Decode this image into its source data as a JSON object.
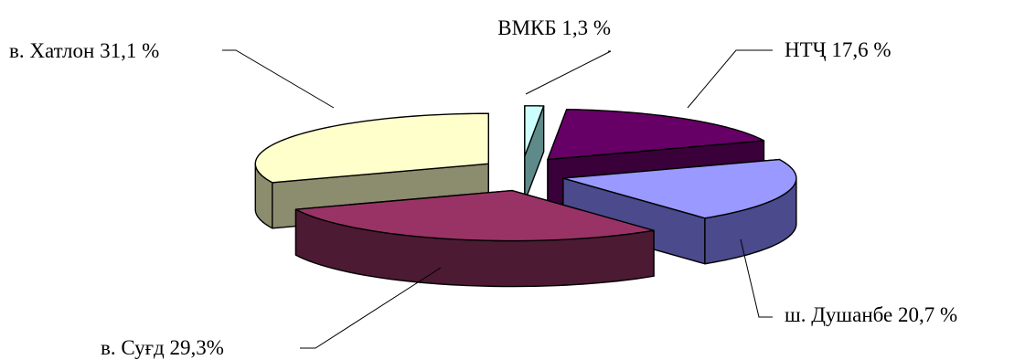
{
  "chart_data": {
    "type": "pie",
    "title": "",
    "style": "3d-exploded",
    "slices": [
      {
        "label": "ВМКБ 1,3 %",
        "name": "ВМКБ",
        "value": 1.3,
        "color": "#CCFFFF",
        "side_color": "#5F8A8A"
      },
      {
        "label": "НТҶ 17,6 %",
        "name": "НТҶ",
        "value": 17.6,
        "color": "#660066",
        "side_color": "#3A003A"
      },
      {
        "label": "ш. Душанбе 20,7 %",
        "name": "ш. Душанбе",
        "value": 20.7,
        "color": "#9999FF",
        "side_color": "#4A4A8C"
      },
      {
        "label": "в. Суғд  29,3%",
        "name": "в. Суғд",
        "value": 29.3,
        "color": "#993366",
        "side_color": "#4D1A33"
      },
      {
        "label": "в. Хатлон 31,1 %",
        "name": "в. Хатлон",
        "value": 31.1,
        "color": "#FFFFCC",
        "side_color": "#8C8C6E"
      }
    ]
  }
}
